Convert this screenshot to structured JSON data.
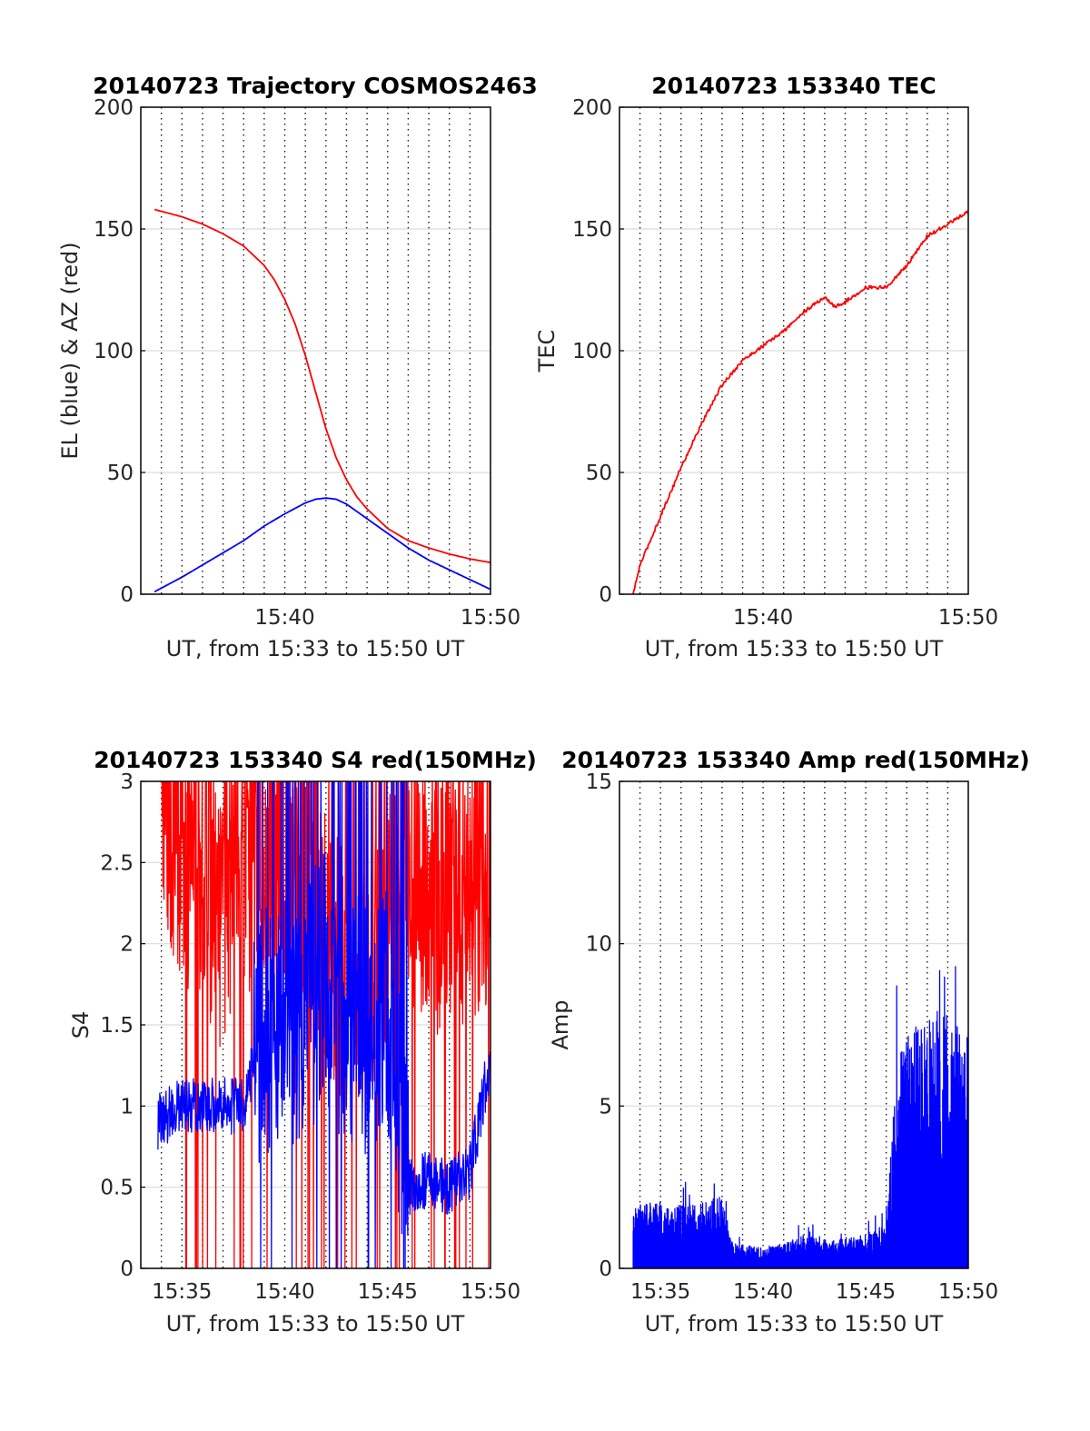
{
  "chart_data": [
    {
      "type": "line",
      "title": "20140723 Trajectory COSMOS2463",
      "xlabel": "UT, from 15:33 to 15:50 UT",
      "ylabel": "EL (blue) & AZ (red)",
      "xlim": [
        "15:33",
        "15:50"
      ],
      "ylim": [
        0,
        200
      ],
      "x_ticks": [
        "15:40",
        "15:50"
      ],
      "y_ticks": [
        "0",
        "50",
        "100",
        "150",
        "200"
      ],
      "grid": "vertical dotted every minute, horizontal light",
      "series": [
        {
          "color": "#ff0000",
          "x": [
            "15:33:40",
            "15:35:00",
            "15:36:00",
            "15:37:00",
            "15:38:00",
            "15:39:00",
            "15:39:30",
            "15:40:00",
            "15:40:30",
            "15:41:00",
            "15:41:30",
            "15:42:00",
            "15:42:30",
            "15:43:00",
            "15:43:30",
            "15:44:00",
            "15:45:00",
            "15:46:00",
            "15:47:00",
            "15:48:00",
            "15:49:00",
            "15:50:00"
          ],
          "values": [
            158,
            155,
            152,
            148,
            143,
            135,
            129,
            121,
            111,
            98,
            83,
            68,
            56,
            47,
            40,
            35,
            27,
            22,
            19,
            16.5,
            14.5,
            13
          ]
        },
        {
          "color": "#0000ff",
          "x": [
            "15:33:40",
            "15:35:00",
            "15:36:00",
            "15:37:00",
            "15:38:00",
            "15:39:00",
            "15:40:00",
            "15:41:00",
            "15:41:30",
            "15:42:00",
            "15:42:30",
            "15:43:00",
            "15:44:00",
            "15:45:00",
            "15:46:00",
            "15:47:00",
            "15:48:00",
            "15:49:00",
            "15:50:00"
          ],
          "values": [
            1,
            7,
            12,
            17,
            22,
            28,
            33,
            37.5,
            39,
            39.5,
            39,
            37,
            31,
            25,
            19,
            14,
            10,
            6,
            2
          ]
        }
      ]
    },
    {
      "type": "line",
      "title": "20140723 153340 TEC",
      "xlabel": "UT, from 15:33 to 15:50 UT",
      "ylabel": "TEC",
      "xlim": [
        "15:33",
        "15:50"
      ],
      "ylim": [
        0,
        200
      ],
      "x_ticks": [
        "15:40",
        "15:50"
      ],
      "y_ticks": [
        "0",
        "50",
        "100",
        "150",
        "200"
      ],
      "grid": "vertical dotted every minute, horizontal light",
      "series": [
        {
          "color": "#ff0000",
          "x": [
            "15:33:40",
            "15:34:00",
            "15:35:00",
            "15:36:00",
            "15:37:00",
            "15:38:00",
            "15:39:00",
            "15:40:00",
            "15:41:00",
            "15:42:00",
            "15:43:00",
            "15:43:30",
            "15:44:00",
            "15:45:00",
            "15:46:00",
            "15:47:00",
            "15:48:00",
            "15:49:00",
            "15:50:00"
          ],
          "values": [
            0,
            12,
            32,
            52,
            70,
            86,
            96,
            102,
            108,
            116,
            122,
            118,
            120,
            126,
            126,
            135,
            147,
            152,
            157
          ]
        }
      ]
    },
    {
      "type": "line",
      "title": "20140723 153340 S4 red(150MHz)",
      "xlabel": "UT, from 15:33 to 15:50 UT",
      "ylabel": "S4",
      "xlim": [
        "15:33",
        "15:50"
      ],
      "ylim": [
        0,
        3
      ],
      "x_ticks": [
        "15:35",
        "15:40",
        "15:45",
        "15:50"
      ],
      "y_ticks": [
        "0",
        "0.5",
        "1",
        "1.5",
        "2",
        "2.5",
        "3"
      ],
      "grid": "vertical dotted every minute, horizontal light",
      "series": [
        {
          "color": "#ff0000",
          "x": [
            "15:34:00",
            "15:35:00",
            "15:36:00",
            "15:37:00",
            "15:38:00",
            "15:39:00",
            "15:40:00",
            "15:41:00",
            "15:42:00",
            "15:43:00",
            "15:44:00",
            "15:45:00",
            "15:46:00",
            "15:47:00",
            "15:48:00",
            "15:49:00",
            "15:50:00"
          ],
          "values": [
            2.9,
            2.5,
            2.4,
            2.1,
            2.5,
            2.2,
            2.3,
            2.4,
            2.0,
            1.8,
            1.8,
            2.2,
            2.4,
            2.2,
            2.3,
            2.3,
            2.4
          ]
        },
        {
          "color": "#0000ff",
          "x": [
            "15:33:50",
            "15:35:00",
            "15:36:00",
            "15:37:00",
            "15:38:00",
            "15:39:00",
            "15:40:00",
            "15:41:00",
            "15:42:00",
            "15:43:00",
            "15:44:00",
            "15:45:00",
            "15:46:00",
            "15:47:00",
            "15:48:00",
            "15:49:00",
            "15:50:00"
          ],
          "values": [
            0.9,
            1.0,
            1.0,
            1.0,
            1.0,
            1.5,
            1.5,
            1.6,
            1.8,
            1.5,
            1.5,
            1.6,
            0.5,
            0.55,
            0.5,
            0.6,
            1.3
          ]
        }
      ]
    },
    {
      "type": "line",
      "title": "20140723 153340 Amp red(150MHz)",
      "xlabel": "UT, from 15:33 to 15:50 UT",
      "ylabel": "Amp",
      "xlim": [
        "15:33",
        "15:50"
      ],
      "ylim": [
        0,
        15
      ],
      "x_ticks": [
        "15:35",
        "15:40",
        "15:45",
        "15:50"
      ],
      "y_ticks": [
        "0",
        "5",
        "10",
        "15"
      ],
      "grid": "vertical dotted every minute, horizontal light",
      "series": [
        {
          "color": "#0000ff",
          "x": [
            "15:33:40",
            "15:35:00",
            "15:36:00",
            "15:37:00",
            "15:38:00",
            "15:38:30",
            "15:40:00",
            "15:41:00",
            "15:42:00",
            "15:43:00",
            "15:44:00",
            "15:45:00",
            "15:46:00",
            "15:46:30",
            "15:47:00",
            "15:48:00",
            "15:49:00",
            "15:50:00"
          ],
          "values": [
            1.5,
            1.6,
            1.5,
            1.6,
            1.7,
            0.6,
            0.5,
            0.6,
            0.8,
            0.7,
            0.7,
            0.8,
            1.0,
            5.0,
            5.5,
            6.0,
            6.5,
            5.5
          ]
        },
        {
          "color": "#ff0000",
          "x": [
            "15:33:40",
            "15:50:00"
          ],
          "values": [
            0.05,
            0.05
          ]
        }
      ]
    }
  ]
}
